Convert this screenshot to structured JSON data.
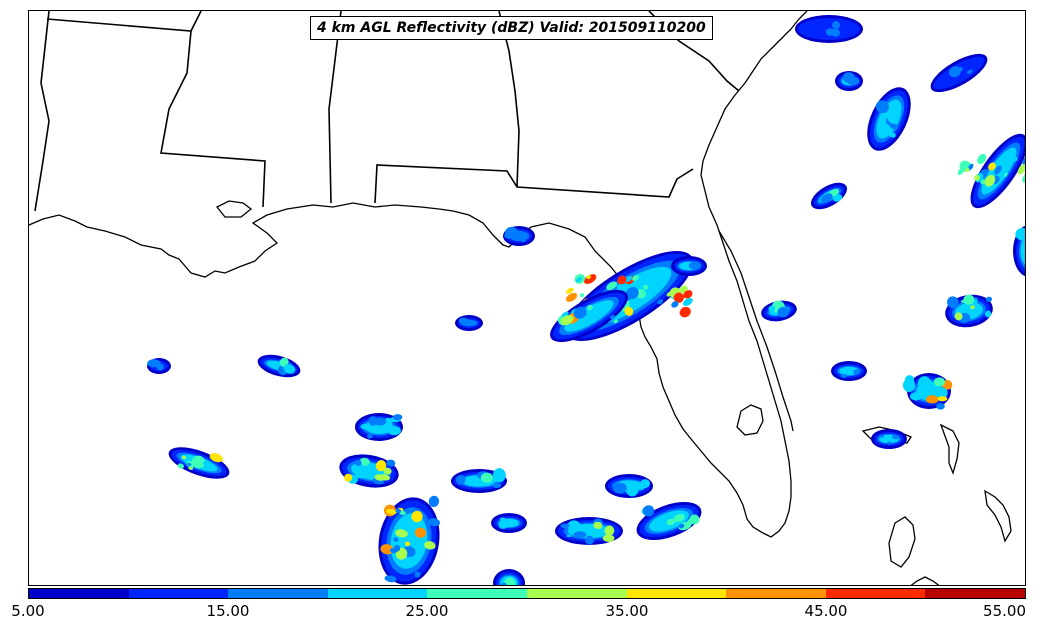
{
  "title": "4 km AGL Reflectivity (dBZ) Valid: 201509110200",
  "colorbar": {
    "colors": [
      "#0000c8",
      "#0026ff",
      "#007cff",
      "#00d4ff",
      "#3dffb8",
      "#a8ff4f",
      "#ffe600",
      "#ff9200",
      "#ff2a00",
      "#b80000"
    ],
    "tick_labels": [
      "5.00",
      "15.00",
      "25.00",
      "35.00",
      "45.00",
      "55.00"
    ]
  },
  "map": {
    "coastline_color": "#000000",
    "state_border_color": "#000000",
    "background_color": "#ffffff"
  }
}
